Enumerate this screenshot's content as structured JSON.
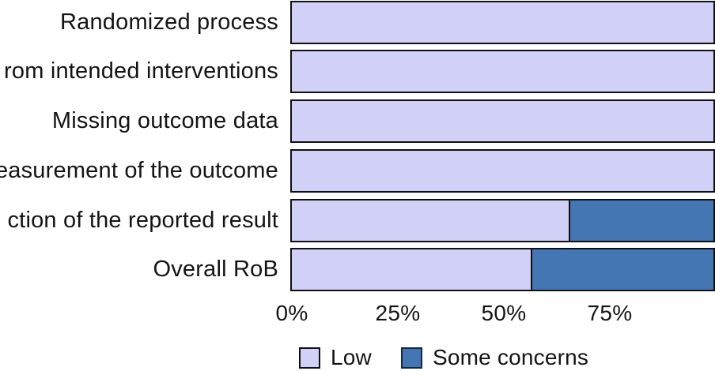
{
  "chart_data": {
    "type": "bar",
    "orientation": "horizontal",
    "stacked": true,
    "title": "",
    "xlabel": "",
    "ylabel": "",
    "categories": [
      "Randomized process",
      "rom intended interventions",
      "Missing outcome data",
      "easurement of the outcome",
      "ction of the reported result",
      "Overall RoB"
    ],
    "series": [
      {
        "name": "Low",
        "color": "#d1d0f7",
        "values": [
          100,
          100,
          100,
          100,
          66,
          57
        ]
      },
      {
        "name": "Some concerns",
        "color": "#4576b4",
        "values": [
          0,
          0,
          0,
          0,
          34,
          43
        ]
      }
    ],
    "x_ticks": [
      "0%",
      "25%",
      "50%",
      "75%"
    ],
    "x_tick_values": [
      0,
      25,
      50,
      75
    ],
    "xlim": [
      0,
      100
    ],
    "grid": false,
    "legend_position": "bottom"
  }
}
